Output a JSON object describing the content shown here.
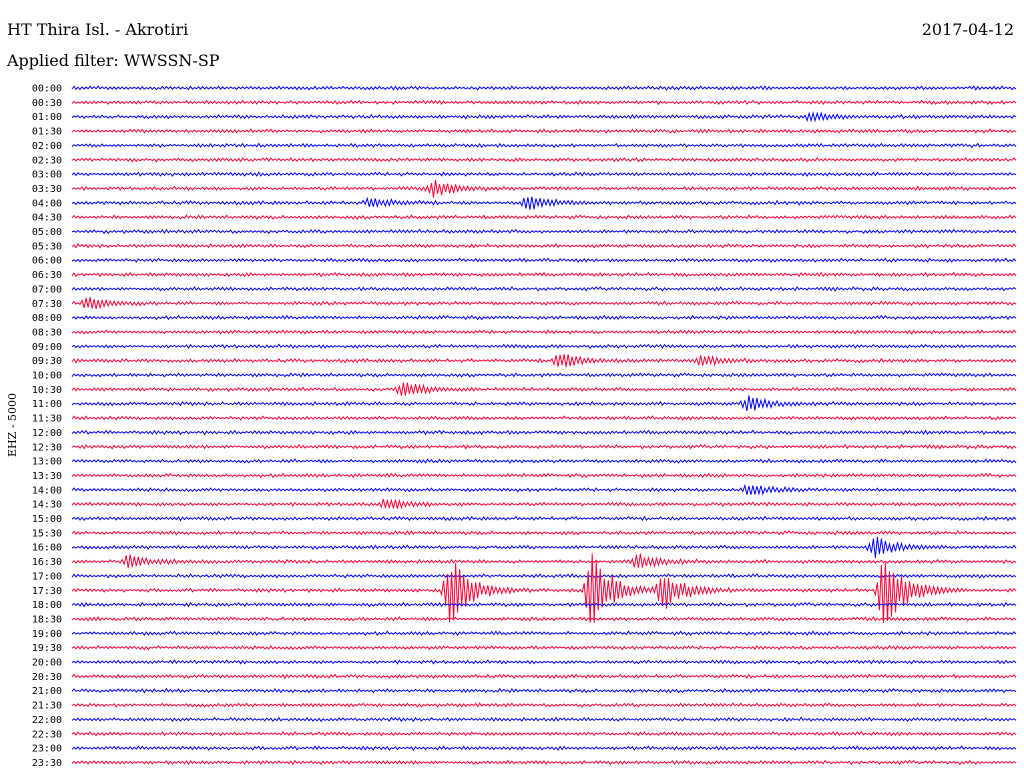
{
  "header": {
    "station": "HT Thira Isl. - Akrotiri",
    "date": "2017-04-12",
    "filter": "Applied filter: WWSSN-SP"
  },
  "chart_data": {
    "type": "line",
    "ylabel": "EHZ - 5000",
    "row_labels": [
      "00:00",
      "00:30",
      "01:00",
      "01:30",
      "02:00",
      "02:30",
      "03:00",
      "03:30",
      "04:00",
      "04:30",
      "05:00",
      "05:30",
      "06:00",
      "06:30",
      "07:00",
      "07:30",
      "08:00",
      "08:30",
      "09:00",
      "09:30",
      "10:00",
      "10:30",
      "11:00",
      "11:30",
      "12:00",
      "12:30",
      "13:00",
      "13:30",
      "14:00",
      "14:30",
      "15:00",
      "15:30",
      "16:00",
      "16:30",
      "17:00",
      "17:30",
      "18:00",
      "18:30",
      "19:00",
      "19:30",
      "20:00",
      "20:30",
      "21:00",
      "21:30",
      "22:00",
      "22:30",
      "23:00",
      "23:30"
    ],
    "trace_colors": [
      "#0000ff",
      "#ff0033"
    ],
    "row_minutes": 30,
    "events": [
      {
        "row": 2,
        "minute": 23.5,
        "amplitude": 0.3
      },
      {
        "row": 7,
        "minute": 11.5,
        "amplitude": 0.7
      },
      {
        "row": 8,
        "minute": 9.5,
        "amplitude": 0.4
      },
      {
        "row": 8,
        "minute": 14.5,
        "amplitude": 0.5
      },
      {
        "row": 15,
        "minute": 0.5,
        "amplitude": 0.5
      },
      {
        "row": 19,
        "minute": 15.5,
        "amplitude": 0.6
      },
      {
        "row": 19,
        "minute": 20.0,
        "amplitude": 0.4
      },
      {
        "row": 21,
        "minute": 10.5,
        "amplitude": 0.6
      },
      {
        "row": 22,
        "minute": 21.5,
        "amplitude": 0.6
      },
      {
        "row": 29,
        "minute": 10.0,
        "amplitude": 0.4
      },
      {
        "row": 28,
        "minute": 21.5,
        "amplitude": 0.4
      },
      {
        "row": 32,
        "minute": 25.5,
        "amplitude": 0.9
      },
      {
        "row": 33,
        "minute": 1.8,
        "amplitude": 0.5
      },
      {
        "row": 33,
        "minute": 18.0,
        "amplitude": 0.6
      },
      {
        "row": 35,
        "minute": 12.0,
        "amplitude": 2.8
      },
      {
        "row": 35,
        "minute": 16.5,
        "amplitude": 3.0
      },
      {
        "row": 35,
        "minute": 18.8,
        "amplitude": 1.6
      },
      {
        "row": 35,
        "minute": 25.8,
        "amplitude": 3.2
      }
    ]
  }
}
